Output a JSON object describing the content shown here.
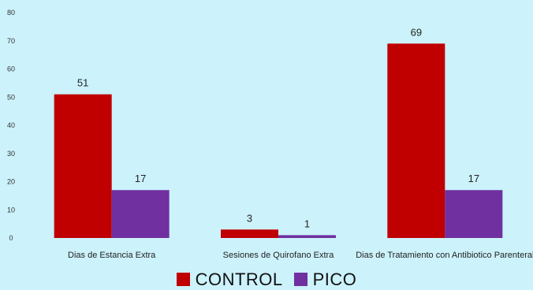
{
  "chart_data": {
    "type": "bar",
    "title": "",
    "xlabel": "",
    "ylabel": "",
    "ylim": [
      0,
      80
    ],
    "yticks": [
      0,
      10,
      20,
      30,
      40,
      50,
      60,
      70,
      80
    ],
    "grid": false,
    "legend_position": "bottom",
    "categories": [
      "Dias de Estancia Extra",
      "Sesiones de Quirofano Extra",
      "Dias de Tratamiento con Antibiotico Parenteral"
    ],
    "series": [
      {
        "name": "CONTROL",
        "color": "#c00000",
        "values": [
          51,
          3,
          69
        ]
      },
      {
        "name": "PICO",
        "color": "#7030a0",
        "values": [
          17,
          1,
          17
        ]
      }
    ]
  }
}
